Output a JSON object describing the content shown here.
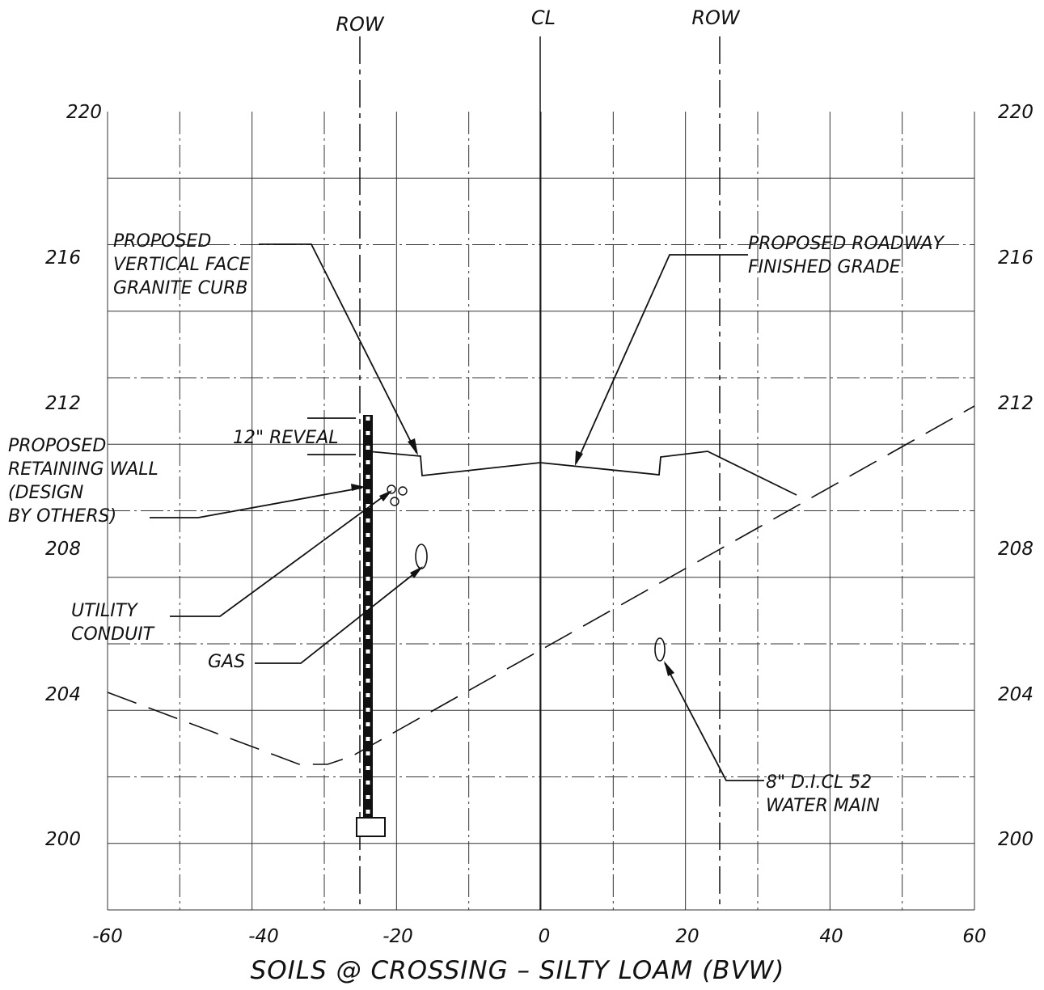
{
  "diagram": {
    "title": "SOILS @ CROSSING – SILTY LOAM (BVW)",
    "headers": {
      "row_left": "ROW",
      "centerline": "CL",
      "row_right": "ROW"
    },
    "x_ticks": [
      "-60",
      "-40",
      "-20",
      "0",
      "20",
      "40",
      "60"
    ],
    "y_ticks": [
      "220",
      "216",
      "212",
      "208",
      "204",
      "200"
    ],
    "x_range": [
      -60,
      60
    ],
    "y_range": [
      198,
      222
    ],
    "row_left_offset": -25,
    "row_right_offset": 25,
    "labels": {
      "curb": [
        "PROPOSED",
        "VERTICAL FACE",
        "GRANITE CURB"
      ],
      "roadway": [
        "PROPOSED ROADWAY",
        "FINISHED GRADE"
      ],
      "reveal": "12\" REVEAL",
      "wall": [
        "PROPOSED",
        "RETAINING WALL",
        "(DESIGN",
        "BY OTHERS)"
      ],
      "conduit": [
        "UTILITY",
        "CONDUIT"
      ],
      "gas": "GAS",
      "water": [
        "8\" D.I.CL 52",
        "WATER MAIN"
      ]
    }
  }
}
